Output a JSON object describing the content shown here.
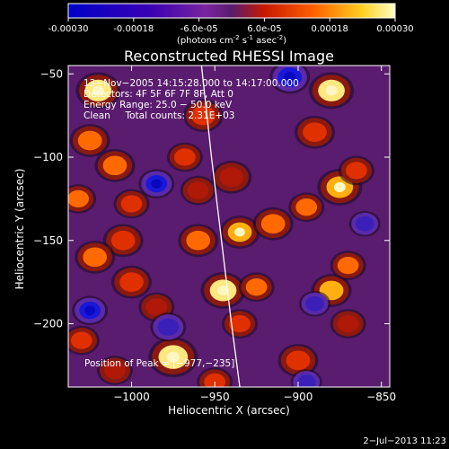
{
  "colorbar": {
    "ticks": [
      {
        "value": -0.0003,
        "label": "-0.00030"
      },
      {
        "value": -0.00018,
        "label": "-0.00018"
      },
      {
        "value": -6e-05,
        "label": "-6.0e-05"
      },
      {
        "value": 6e-05,
        "label": "6.0e-05"
      },
      {
        "value": 0.00018,
        "label": "0.00018"
      },
      {
        "value": 0.0003,
        "label": "0.00030"
      }
    ],
    "range": [
      -0.0003,
      0.0003
    ],
    "unit": {
      "base": "(photons cm",
      "e1": "-2",
      "mid1": " s",
      "e2": "-1",
      "mid2": " asec",
      "e3": "-2",
      "end": ")"
    }
  },
  "chart_data": {
    "type": "heatmap",
    "title": "Reconstructed RHESSI Image",
    "xlabel": "Heliocentric X (arcsec)",
    "ylabel": "Heliocentric Y (arcsec)",
    "xlim": [
      -1038,
      -845
    ],
    "ylim": [
      -238,
      -45
    ],
    "xticks": [
      {
        "value": -1000,
        "label": "−1000"
      },
      {
        "value": -950,
        "label": "−950"
      },
      {
        "value": -900,
        "label": "−900"
      },
      {
        "value": -850,
        "label": "−850"
      }
    ],
    "yticks": [
      {
        "value": -50,
        "label": "−50"
      },
      {
        "value": -100,
        "label": "−100"
      },
      {
        "value": -150,
        "label": "−150"
      },
      {
        "value": -200,
        "label": "−200"
      }
    ],
    "annotations": [
      "13−Nov−2005 14:15:28.000 to 14:17:00.000",
      "Detectors: 4F 5F 6F 7F 8F, Att 0",
      "Energy Range: 25.0 − 50.0 keV",
      "Clean     Total counts: 2.31E+03"
    ],
    "peak_label": "Position of Peak = [−977,−235]",
    "limb_curve": [
      [
        -958,
        -45
      ],
      [
        -952,
        -100
      ],
      [
        -946,
        -150
      ],
      [
        -940,
        -200
      ],
      [
        -935,
        -238
      ]
    ],
    "blobs": [
      {
        "x": -1020,
        "y": -60,
        "v": 1.0,
        "r": 10
      },
      {
        "x": -1025,
        "y": -90,
        "v": 0.8,
        "r": 9
      },
      {
        "x": -1032,
        "y": -125,
        "v": 0.8,
        "r": 8
      },
      {
        "x": -1010,
        "y": -105,
        "v": 0.7,
        "r": 9
      },
      {
        "x": -1000,
        "y": -128,
        "v": 0.6,
        "r": 8
      },
      {
        "x": -1005,
        "y": -150,
        "v": 0.55,
        "r": 9
      },
      {
        "x": -1022,
        "y": -160,
        "v": 0.8,
        "r": 9
      },
      {
        "x": -1000,
        "y": -175,
        "v": 0.5,
        "r": 9
      },
      {
        "x": -1030,
        "y": -210,
        "v": 0.5,
        "r": 8
      },
      {
        "x": -975,
        "y": -220,
        "v": 1.05,
        "r": 11
      },
      {
        "x": -950,
        "y": -235,
        "v": 0.6,
        "r": 8
      },
      {
        "x": -960,
        "y": -150,
        "v": 0.8,
        "r": 9
      },
      {
        "x": -935,
        "y": -145,
        "v": 0.95,
        "r": 9
      },
      {
        "x": -915,
        "y": -140,
        "v": 0.8,
        "r": 9
      },
      {
        "x": -895,
        "y": -130,
        "v": 0.7,
        "r": 8
      },
      {
        "x": -875,
        "y": -118,
        "v": 0.95,
        "r": 10
      },
      {
        "x": -865,
        "y": -108,
        "v": 0.6,
        "r": 8
      },
      {
        "x": -957,
        "y": -75,
        "v": 0.6,
        "r": 9
      },
      {
        "x": -968,
        "y": -100,
        "v": 0.6,
        "r": 8
      },
      {
        "x": -940,
        "y": -112,
        "v": 0.45,
        "r": 9
      },
      {
        "x": -880,
        "y": -60,
        "v": 1.0,
        "r": 10
      },
      {
        "x": -890,
        "y": -85,
        "v": 0.6,
        "r": 9
      },
      {
        "x": -945,
        "y": -180,
        "v": 1.0,
        "r": 10
      },
      {
        "x": -925,
        "y": -178,
        "v": 0.7,
        "r": 8
      },
      {
        "x": -880,
        "y": -180,
        "v": 0.85,
        "r": 9
      },
      {
        "x": -870,
        "y": -165,
        "v": 0.7,
        "r": 8
      },
      {
        "x": -935,
        "y": -200,
        "v": 0.5,
        "r": 8
      },
      {
        "x": -900,
        "y": -222,
        "v": 0.6,
        "r": 9
      },
      {
        "x": -870,
        "y": -200,
        "v": 0.45,
        "r": 8
      },
      {
        "x": -960,
        "y": -120,
        "v": 0.45,
        "r": 8
      },
      {
        "x": -985,
        "y": -190,
        "v": 0.45,
        "r": 8
      },
      {
        "x": -1010,
        "y": -228,
        "v": 0.4,
        "r": 8
      }
    ],
    "negative_blobs": [
      {
        "x": -905,
        "y": -52,
        "v": -1.0,
        "r": 9
      },
      {
        "x": -985,
        "y": -116,
        "v": -1.0,
        "r": 8
      },
      {
        "x": -1025,
        "y": -192,
        "v": -0.9,
        "r": 8
      },
      {
        "x": -890,
        "y": -188,
        "v": -0.75,
        "r": 7
      },
      {
        "x": -978,
        "y": -202,
        "v": -0.6,
        "r": 8
      },
      {
        "x": -895,
        "y": -235,
        "v": -0.6,
        "r": 7
      },
      {
        "x": -860,
        "y": -140,
        "v": -0.5,
        "r": 7
      }
    ]
  },
  "footer": {
    "timestamp": "2−Jul−2013 11:23"
  }
}
